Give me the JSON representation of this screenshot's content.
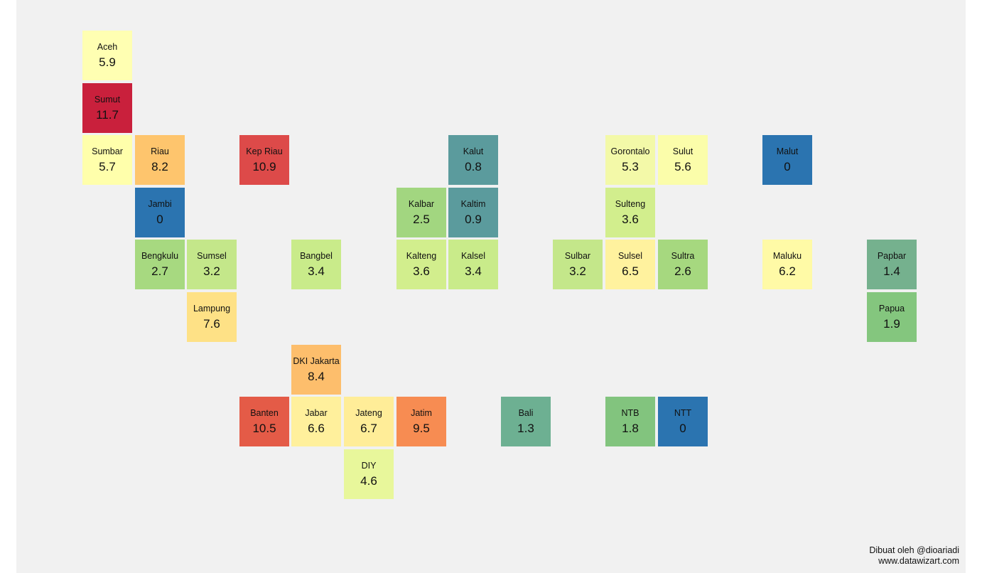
{
  "chart_data": {
    "type": "heatmap",
    "title": "",
    "tiles": [
      {
        "name": "Aceh",
        "value": "5.9",
        "color": "#ffffb2",
        "col": 0,
        "row": 0
      },
      {
        "name": "Sumut",
        "value": "11.7",
        "color": "#c9203c",
        "col": 0,
        "row": 1
      },
      {
        "name": "Sumbar",
        "value": "5.7",
        "color": "#ffffab",
        "col": 0,
        "row": 2
      },
      {
        "name": "Riau",
        "value": "8.2",
        "color": "#fec56d",
        "col": 1,
        "row": 2
      },
      {
        "name": "Kep Riau",
        "value": "10.9",
        "color": "#dd4a49",
        "col": 3,
        "row": 2
      },
      {
        "name": "Kalut",
        "value": "0.8",
        "color": "#5b9b9d",
        "col": 7,
        "row": 2
      },
      {
        "name": "Gorontalo",
        "value": "5.3",
        "color": "#f3f9a8",
        "col": 10,
        "row": 2
      },
      {
        "name": "Sulut",
        "value": "5.6",
        "color": "#fbfdaa",
        "col": 11,
        "row": 2
      },
      {
        "name": "Malut",
        "value": "0",
        "color": "#2b74b0",
        "col": 13,
        "row": 2
      },
      {
        "name": "Jambi",
        "value": "0",
        "color": "#2b74b0",
        "col": 1,
        "row": 3
      },
      {
        "name": "Kalbar",
        "value": "2.5",
        "color": "#a2d680",
        "col": 6,
        "row": 3
      },
      {
        "name": "Kaltim",
        "value": "0.9",
        "color": "#5b9b9d",
        "col": 7,
        "row": 3
      },
      {
        "name": "Sulteng",
        "value": "3.6",
        "color": "#d2ee8d",
        "col": 10,
        "row": 3
      },
      {
        "name": "Bengkulu",
        "value": "2.7",
        "color": "#a7d980",
        "col": 1,
        "row": 4
      },
      {
        "name": "Sumsel",
        "value": "3.2",
        "color": "#c4e78a",
        "col": 2,
        "row": 4
      },
      {
        "name": "Bangbel",
        "value": "3.4",
        "color": "#c9eb8a",
        "col": 4,
        "row": 4
      },
      {
        "name": "Kalteng",
        "value": "3.6",
        "color": "#d2ee8d",
        "col": 6,
        "row": 4
      },
      {
        "name": "Kalsel",
        "value": "3.4",
        "color": "#c9eb8a",
        "col": 7,
        "row": 4
      },
      {
        "name": "Sulbar",
        "value": "3.2",
        "color": "#c4e78a",
        "col": 9,
        "row": 4
      },
      {
        "name": "Sulsel",
        "value": "6.5",
        "color": "#fff29e",
        "col": 10,
        "row": 4
      },
      {
        "name": "Sultra",
        "value": "2.6",
        "color": "#a6d87f",
        "col": 11,
        "row": 4
      },
      {
        "name": "Maluku",
        "value": "6.2",
        "color": "#fffaa6",
        "col": 13,
        "row": 4
      },
      {
        "name": "Papbar",
        "value": "1.4",
        "color": "#75b18e",
        "col": 15,
        "row": 4
      },
      {
        "name": "Lampung",
        "value": "7.6",
        "color": "#fee186",
        "col": 2,
        "row": 5
      },
      {
        "name": "Papua",
        "value": "1.9",
        "color": "#84c67e",
        "col": 15,
        "row": 5
      },
      {
        "name": "DKI Jakarta",
        "value": "8.4",
        "color": "#fdbe6c",
        "col": 4,
        "row": 6
      },
      {
        "name": "Banten",
        "value": "10.5",
        "color": "#e45b47",
        "col": 3,
        "row": 7
      },
      {
        "name": "Jabar",
        "value": "6.6",
        "color": "#fff09c",
        "col": 4,
        "row": 7
      },
      {
        "name": "Jateng",
        "value": "6.7",
        "color": "#ffed98",
        "col": 5,
        "row": 7
      },
      {
        "name": "Jatim",
        "value": "9.5",
        "color": "#f78c52",
        "col": 6,
        "row": 7
      },
      {
        "name": "Bali",
        "value": "1.3",
        "color": "#6db092",
        "col": 8,
        "row": 7
      },
      {
        "name": "NTB",
        "value": "1.8",
        "color": "#82c47e",
        "col": 10,
        "row": 7
      },
      {
        "name": "NTT",
        "value": "0",
        "color": "#2b74b0",
        "col": 11,
        "row": 7
      },
      {
        "name": "DIY",
        "value": "4.6",
        "color": "#e8f79b",
        "col": 5,
        "row": 8
      }
    ]
  },
  "credit": {
    "line1": "Dibuat oleh @dioariadi",
    "line2": "www.datawizart.com"
  }
}
